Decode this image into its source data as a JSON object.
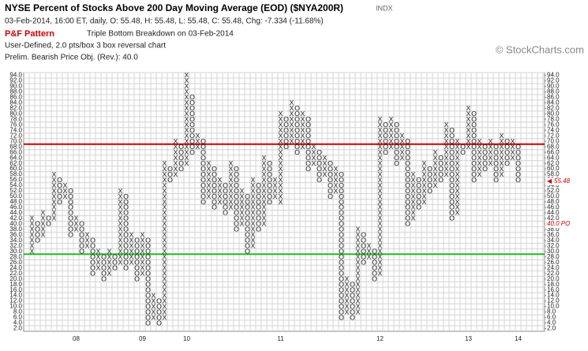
{
  "chart_data": {
    "type": "point_and_figure",
    "title": "NYSE Percent of Stocks Above 200 Day Moving Average (EOD) ($NYA200R)",
    "exchange": "INDX",
    "subtitle": "03-Feb-2014, 16:00 ET, daily, O: 55.48, H: 55.48, L: 55.48, C: 55.48, Chg: -7.334 (-11.68%)",
    "pattern_label": "P&F Pattern",
    "pattern": "Triple Bottom Breakdown on 03-Feb-2014",
    "settings_text": "User-Defined, 2.0 pts/box 3 box reversal chart",
    "objective_text": "Prelim. Bearish Price Obj. (Rev.): 40.0",
    "copyright": "© StockCharts.com",
    "box_size": 2,
    "ylim": [
      1,
      95
    ],
    "yticks": [
      {
        "value": 2,
        "label": "2.0"
      },
      {
        "value": 4,
        "label": "4.0"
      },
      {
        "value": 6,
        "label": "6.0"
      },
      {
        "value": 8,
        "label": "8.0"
      },
      {
        "value": 10,
        "label": "10.0"
      },
      {
        "value": 12,
        "label": "12.0"
      },
      {
        "value": 14,
        "label": "14.0"
      },
      {
        "value": 16,
        "label": "16.0"
      },
      {
        "value": 18,
        "label": "18.0"
      },
      {
        "value": 20,
        "label": "20.0"
      },
      {
        "value": 22,
        "label": "22.0"
      },
      {
        "value": 24,
        "label": "24.0"
      },
      {
        "value": 26,
        "label": "26.0"
      },
      {
        "value": 28,
        "label": "28.0"
      },
      {
        "value": 30,
        "label": "30.0"
      },
      {
        "value": 32,
        "label": "32.0"
      },
      {
        "value": 34,
        "label": "34.0"
      },
      {
        "value": 36,
        "label": "36.0"
      },
      {
        "value": 38,
        "label": "38.0"
      },
      {
        "value": 40,
        "label": "40.0"
      },
      {
        "value": 42,
        "label": "42.0"
      },
      {
        "value": 44,
        "label": "44.0"
      },
      {
        "value": 46,
        "label": "46.0"
      },
      {
        "value": 48,
        "label": "48.0"
      },
      {
        "value": 50,
        "label": "50.0"
      },
      {
        "value": 52,
        "label": "52.0"
      },
      {
        "value": 54,
        "label": "54.0"
      },
      {
        "value": 56,
        "label": "56.0"
      },
      {
        "value": 58,
        "label": "58.0"
      },
      {
        "value": 60,
        "label": "60.0"
      },
      {
        "value": 62,
        "label": "62.0"
      },
      {
        "value": 64,
        "label": "64.0"
      },
      {
        "value": 66,
        "label": "66.0"
      },
      {
        "value": 68,
        "label": "68.0"
      },
      {
        "value": 70,
        "label": "70.0"
      },
      {
        "value": 72,
        "label": "72.0"
      },
      {
        "value": 74,
        "label": "74.0"
      },
      {
        "value": 76,
        "label": "76.0"
      },
      {
        "value": 78,
        "label": "78.0"
      },
      {
        "value": 80,
        "label": "80.0"
      },
      {
        "value": 82,
        "label": "82.0"
      },
      {
        "value": 84,
        "label": "84.0"
      },
      {
        "value": 86,
        "label": "86.0"
      },
      {
        "value": 88,
        "label": "88.0"
      },
      {
        "value": 90,
        "label": "90.0"
      },
      {
        "value": 92,
        "label": "92.0"
      },
      {
        "value": 94,
        "label": "94.0"
      }
    ],
    "grid": true,
    "columns": [
      {
        "type": "X",
        "low": 30,
        "high": 42
      },
      {
        "type": "O",
        "low": 34,
        "high": 40
      },
      {
        "type": "X",
        "low": 36,
        "high": 44
      },
      {
        "type": "O",
        "low": 40,
        "high": 42
      },
      {
        "type": "X",
        "low": 42,
        "high": 58
      },
      {
        "type": "O",
        "low": 48,
        "high": 56
      },
      {
        "type": "X",
        "low": 50,
        "high": 54
      },
      {
        "type": "O",
        "low": 36,
        "high": 52
      },
      {
        "type": "X",
        "low": 38,
        "high": 42
      },
      {
        "type": "O",
        "low": 30,
        "high": 40
      },
      {
        "type": "X",
        "low": 32,
        "high": 36
      },
      {
        "type": "O",
        "low": 22,
        "high": 34
      },
      {
        "type": "X",
        "low": 24,
        "high": 30
      },
      {
        "type": "O",
        "low": 20,
        "high": 28
      },
      {
        "type": "X",
        "low": 22,
        "high": 30
      },
      {
        "type": "O",
        "low": 24,
        "high": 28
      },
      {
        "type": "X",
        "low": 26,
        "high": 52
      },
      {
        "type": "O",
        "low": 24,
        "high": 50
      },
      {
        "type": "X",
        "low": 26,
        "high": 36
      },
      {
        "type": "O",
        "low": 20,
        "high": 34
      },
      {
        "type": "X",
        "low": 22,
        "high": 36
      },
      {
        "type": "O",
        "low": 4,
        "high": 34
      },
      {
        "type": "X",
        "low": 6,
        "high": 14
      },
      {
        "type": "O",
        "low": 4,
        "high": 12
      },
      {
        "type": "X",
        "low": 6,
        "high": 62
      },
      {
        "type": "O",
        "low": 56,
        "high": 60
      },
      {
        "type": "X",
        "low": 58,
        "high": 70
      },
      {
        "type": "O",
        "low": 60,
        "high": 68
      },
      {
        "type": "X",
        "low": 62,
        "high": 94
      },
      {
        "type": "O",
        "low": 66,
        "high": 86
      },
      {
        "type": "X",
        "low": 68,
        "high": 72
      },
      {
        "type": "O",
        "low": 48,
        "high": 70
      },
      {
        "type": "X",
        "low": 50,
        "high": 62
      },
      {
        "type": "O",
        "low": 46,
        "high": 60
      },
      {
        "type": "X",
        "low": 48,
        "high": 56
      },
      {
        "type": "O",
        "low": 44,
        "high": 54
      },
      {
        "type": "X",
        "low": 46,
        "high": 62
      },
      {
        "type": "O",
        "low": 38,
        "high": 60
      },
      {
        "type": "X",
        "low": 40,
        "high": 52
      },
      {
        "type": "O",
        "low": 30,
        "high": 50
      },
      {
        "type": "X",
        "low": 32,
        "high": 56
      },
      {
        "type": "O",
        "low": 38,
        "high": 54
      },
      {
        "type": "X",
        "low": 40,
        "high": 64
      },
      {
        "type": "O",
        "low": 48,
        "high": 62
      },
      {
        "type": "X",
        "low": 50,
        "high": 56
      },
      {
        "type": "X",
        "low": 48,
        "high": 80
      },
      {
        "type": "O",
        "low": 68,
        "high": 78
      },
      {
        "type": "X",
        "low": 70,
        "high": 84
      },
      {
        "type": "O",
        "low": 66,
        "high": 82
      },
      {
        "type": "X",
        "low": 68,
        "high": 80
      },
      {
        "type": "O",
        "low": 60,
        "high": 78
      },
      {
        "type": "X",
        "low": 62,
        "high": 68
      },
      {
        "type": "O",
        "low": 56,
        "high": 66
      },
      {
        "type": "X",
        "low": 58,
        "high": 64
      },
      {
        "type": "O",
        "low": 50,
        "high": 62
      },
      {
        "type": "X",
        "low": 52,
        "high": 60
      },
      {
        "type": "O",
        "low": 6,
        "high": 58
      },
      {
        "type": "X",
        "low": 8,
        "high": 20
      },
      {
        "type": "O",
        "low": 6,
        "high": 18
      },
      {
        "type": "X",
        "low": 8,
        "high": 38
      },
      {
        "type": "O",
        "low": 26,
        "high": 36
      },
      {
        "type": "X",
        "low": 28,
        "high": 32
      },
      {
        "type": "O",
        "low": 20,
        "high": 30
      },
      {
        "type": "X",
        "low": 22,
        "high": 78
      },
      {
        "type": "O",
        "low": 66,
        "high": 76
      },
      {
        "type": "X",
        "low": 68,
        "high": 78
      },
      {
        "type": "O",
        "low": 62,
        "high": 76
      },
      {
        "type": "X",
        "low": 64,
        "high": 72
      },
      {
        "type": "O",
        "low": 40,
        "high": 70
      },
      {
        "type": "X",
        "low": 42,
        "high": 58
      },
      {
        "type": "O",
        "low": 46,
        "high": 56
      },
      {
        "type": "X",
        "low": 48,
        "high": 62
      },
      {
        "type": "O",
        "low": 52,
        "high": 60
      },
      {
        "type": "X",
        "low": 54,
        "high": 66
      },
      {
        "type": "O",
        "low": 56,
        "high": 64
      },
      {
        "type": "X",
        "low": 58,
        "high": 76
      },
      {
        "type": "O",
        "low": 42,
        "high": 74
      },
      {
        "type": "X",
        "low": 44,
        "high": 70
      },
      {
        "type": "O",
        "low": 66,
        "high": 68
      },
      {
        "type": "X",
        "low": 68,
        "high": 82
      },
      {
        "type": "O",
        "low": 56,
        "high": 80
      },
      {
        "type": "X",
        "low": 58,
        "high": 70
      },
      {
        "type": "O",
        "low": 60,
        "high": 68
      },
      {
        "type": "X",
        "low": 62,
        "high": 70
      },
      {
        "type": "O",
        "low": 56,
        "high": 68
      },
      {
        "type": "X",
        "low": 58,
        "high": 72
      },
      {
        "type": "O",
        "low": 62,
        "high": 70
      },
      {
        "type": "X",
        "low": 64,
        "high": 70
      },
      {
        "type": "O",
        "low": 56,
        "high": 68
      }
    ],
    "year_labels": [
      {
        "column": 8,
        "label": "08"
      },
      {
        "column": 20,
        "label": "09"
      },
      {
        "column": 28,
        "label": "10"
      },
      {
        "column": 45,
        "label": "11"
      },
      {
        "column": 63,
        "label": "12"
      },
      {
        "column": 79,
        "label": "13"
      },
      {
        "column": 88,
        "label": "14"
      }
    ],
    "hlines": [
      {
        "value": 69,
        "color": "#cc0000"
      },
      {
        "value": 29,
        "color": "#22bb22"
      }
    ],
    "price_objective": {
      "value": 40,
      "label": "40.0 PO",
      "color": "#cc0000"
    },
    "last_price": {
      "value": 55.48,
      "label": "55.48",
      "color": "#cc0000"
    }
  }
}
